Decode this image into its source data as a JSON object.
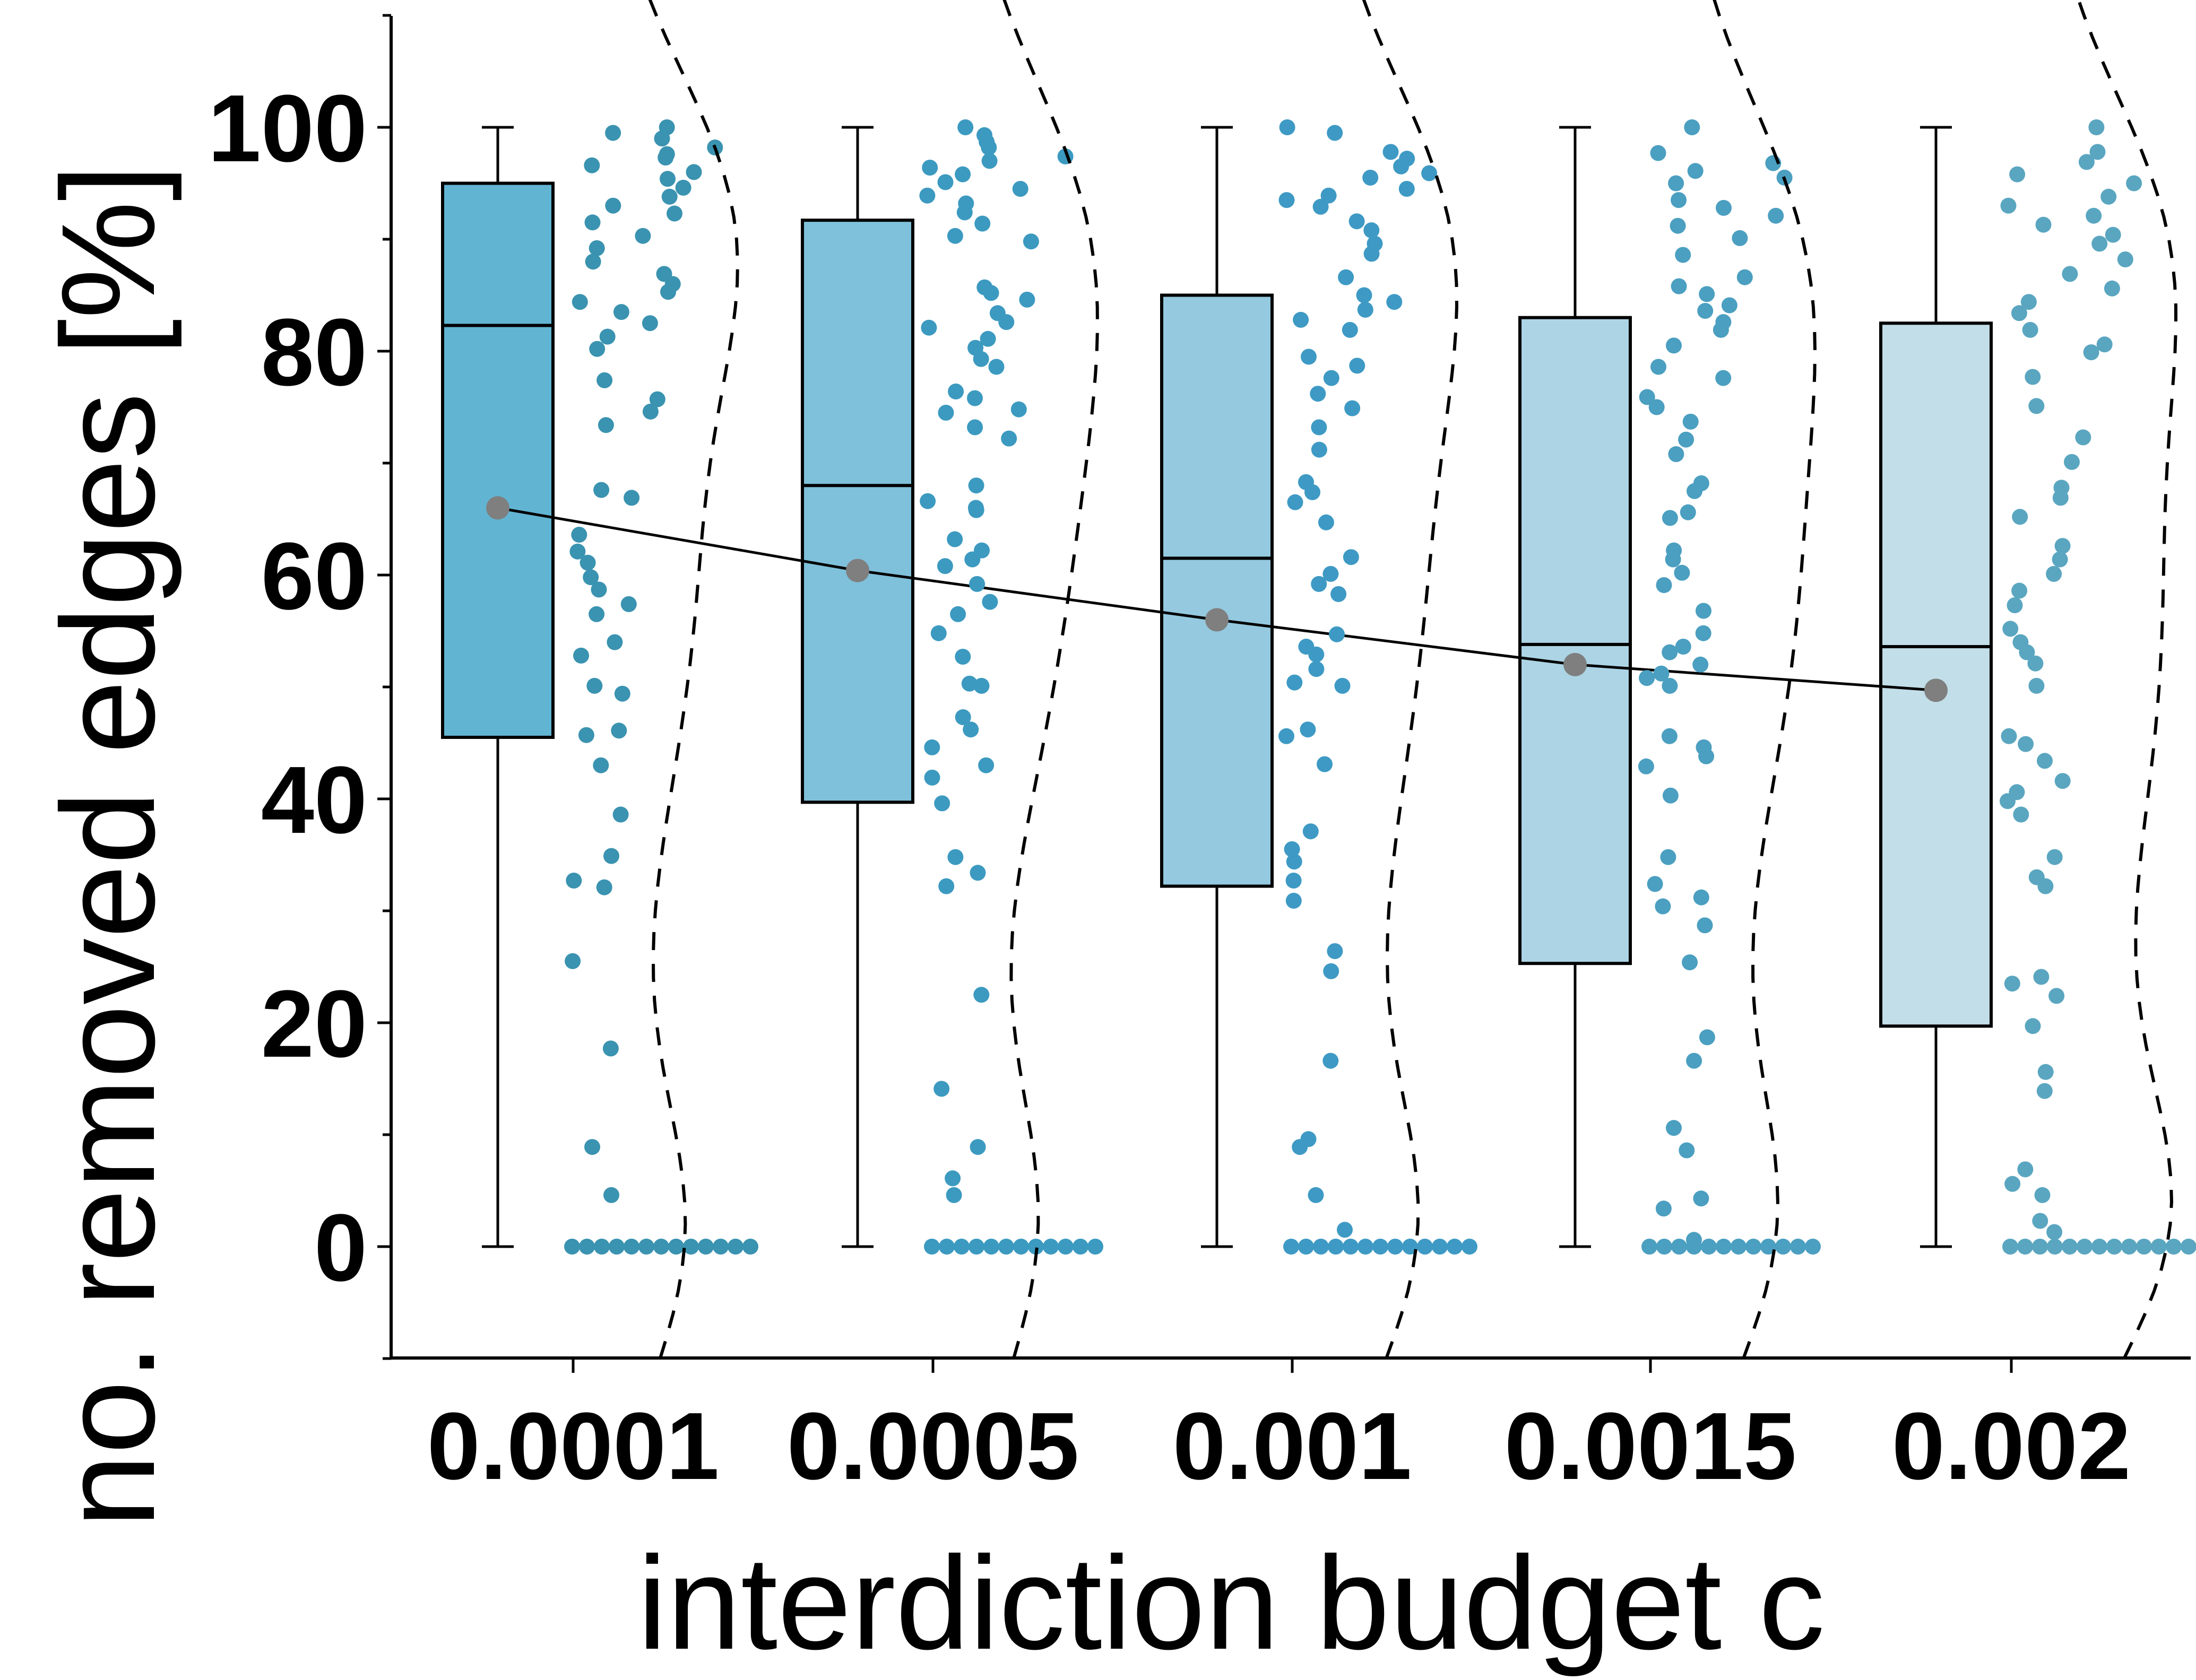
{
  "chart_data": {
    "type": "box",
    "title": "",
    "xlabel": "interdiction budget c",
    "ylabel": "no. removed edges [%]",
    "ylim": [
      -10,
      110
    ],
    "yticks": [
      0,
      20,
      40,
      60,
      80,
      100
    ],
    "categories": [
      "0.0001",
      "0.0005",
      "0.001",
      "0.0015",
      "0.002"
    ],
    "colors": {
      "boxes": [
        "#62b4d3",
        "#7fc0da",
        "#94c9df",
        "#acd4e5",
        "#c2dee8"
      ],
      "points": [
        "#3a93b0",
        "#3c9ac0",
        "#3e9ac4",
        "#4b9fc0",
        "#5aa6c0"
      ],
      "mean_marker": "#7f7f7f",
      "line": "#000000"
    },
    "boxes": [
      {
        "category": "0.0001",
        "whisker_low": 0,
        "q1": 45.5,
        "median": 82.3,
        "q3": 95,
        "whisker_high": 100,
        "mean": 66
      },
      {
        "category": "0.0005",
        "whisker_low": 0,
        "q1": 39.7,
        "median": 68,
        "q3": 91.7,
        "whisker_high": 100,
        "mean": 60.4
      },
      {
        "category": "0.001",
        "whisker_low": 0,
        "q1": 32.2,
        "median": 61.5,
        "q3": 85,
        "whisker_high": 100,
        "mean": 56
      },
      {
        "category": "0.0015",
        "whisker_low": 0,
        "q1": 25.3,
        "median": 53.8,
        "q3": 83,
        "whisker_high": 100,
        "mean": 52
      },
      {
        "category": "0.002",
        "whisker_low": 0,
        "q1": 19.7,
        "median": 53.6,
        "q3": 82.5,
        "whisker_high": 100,
        "mean": 49.7
      }
    ],
    "points": [
      [
        100,
        99.5,
        99,
        98.2,
        97.6,
        97.3,
        96.6,
        96,
        95.4,
        94.6,
        93.8,
        93,
        92.3,
        91.5,
        90.3,
        89.2,
        88,
        86.9,
        86,
        85.3,
        84.4,
        83.5,
        82.5,
        81.3,
        80.2,
        77.4,
        75.7,
        74.6,
        73.4,
        67.6,
        66.9,
        63.6,
        62.1,
        61.1,
        59.8,
        58.7,
        57.4,
        56.5,
        54,
        52.8,
        50.1,
        49.4,
        46.1,
        45.7,
        43,
        38.6,
        34.9,
        32.7,
        32.1,
        25.5,
        17.7,
        8.9,
        4.6,
        0,
        0,
        0,
        0,
        0,
        0,
        0,
        0,
        0,
        0,
        0,
        0,
        0
      ],
      [
        100,
        99.3,
        98.7,
        98.2,
        97.4,
        97,
        96.4,
        95.8,
        95.1,
        94.5,
        93.9,
        93.2,
        92.4,
        91.4,
        90.3,
        89.8,
        85.7,
        85.2,
        84.6,
        83.4,
        82.6,
        82.1,
        81.1,
        80.3,
        79.3,
        78.6,
        76.4,
        75.8,
        74.8,
        74.5,
        73.2,
        72.2,
        68,
        66.6,
        66,
        65.8,
        63.2,
        62.2,
        61.4,
        60.8,
        59.2,
        57.6,
        56.5,
        54.8,
        52.7,
        50.3,
        50.1,
        47.3,
        46.2,
        44.6,
        43,
        41.9,
        39.6,
        34.8,
        33.4,
        32.2,
        22.5,
        14.1,
        8.9,
        6.1,
        4.6,
        0,
        0,
        0,
        0,
        0,
        0,
        0,
        0,
        0,
        0,
        0,
        0
      ],
      [
        100,
        99.5,
        97.8,
        97.2,
        96.5,
        95.9,
        95.5,
        94.5,
        93.9,
        93.5,
        92.9,
        91.6,
        90.8,
        89.6,
        88.7,
        86.6,
        85,
        84.4,
        83.7,
        82.8,
        81.9,
        79.5,
        78.7,
        77.6,
        76.2,
        74.9,
        73.2,
        71.2,
        68.3,
        67.4,
        66.5,
        64.7,
        61.6,
        60.1,
        59.2,
        58.3,
        54.7,
        53.6,
        52.9,
        51.6,
        50.4,
        50.1,
        46.2,
        45.6,
        43.1,
        37.1,
        35.5,
        34.4,
        32.7,
        30.9,
        26.4,
        24.6,
        16.6,
        9.6,
        8.9,
        4.6,
        1.5,
        0,
        0,
        0,
        0,
        0,
        0,
        0,
        0,
        0,
        0,
        0,
        0,
        0
      ],
      [
        100,
        97.7,
        96.8,
        96.1,
        95.5,
        95,
        93.5,
        92.8,
        92.1,
        91.2,
        90.1,
        88.6,
        86.6,
        85.8,
        85.1,
        84.1,
        83.6,
        82.6,
        81.9,
        80.5,
        78.6,
        77.6,
        75.9,
        75,
        73.7,
        72.1,
        70.8,
        68.2,
        67.5,
        65.6,
        65.1,
        62.2,
        61.4,
        60.2,
        59.1,
        56.8,
        54.8,
        53.6,
        53.1,
        52,
        51.2,
        50.8,
        50.1,
        45.6,
        44.6,
        43.8,
        42.9,
        40.3,
        34.8,
        32.4,
        31.2,
        30.4,
        28.7,
        25.4,
        18.7,
        16.6,
        10.6,
        8.6,
        4.3,
        3.4,
        0.6,
        0,
        0,
        0,
        0,
        0,
        0,
        0,
        0,
        0,
        0,
        0,
        0
      ],
      [
        100,
        97.8,
        96.9,
        95.8,
        95,
        93.8,
        93,
        92.1,
        91.3,
        90.4,
        89.6,
        88.2,
        86.9,
        85.6,
        84.4,
        83.4,
        81.9,
        80.6,
        79.9,
        77.7,
        75.1,
        72.3,
        70.1,
        67.8,
        66.9,
        65.2,
        62.6,
        61.4,
        60.1,
        58.6,
        57.3,
        55.2,
        54,
        53.1,
        52.1,
        50.1,
        45.6,
        44.9,
        43.4,
        41.6,
        40.6,
        39.8,
        38.6,
        34.8,
        33,
        32.2,
        24.1,
        23.5,
        22.4,
        19.7,
        15.6,
        13.9,
        6.9,
        5.6,
        4.6,
        2.3,
        1.3,
        0,
        0,
        0,
        0,
        0,
        0,
        0,
        0,
        0,
        0,
        0,
        0,
        0
      ]
    ]
  }
}
